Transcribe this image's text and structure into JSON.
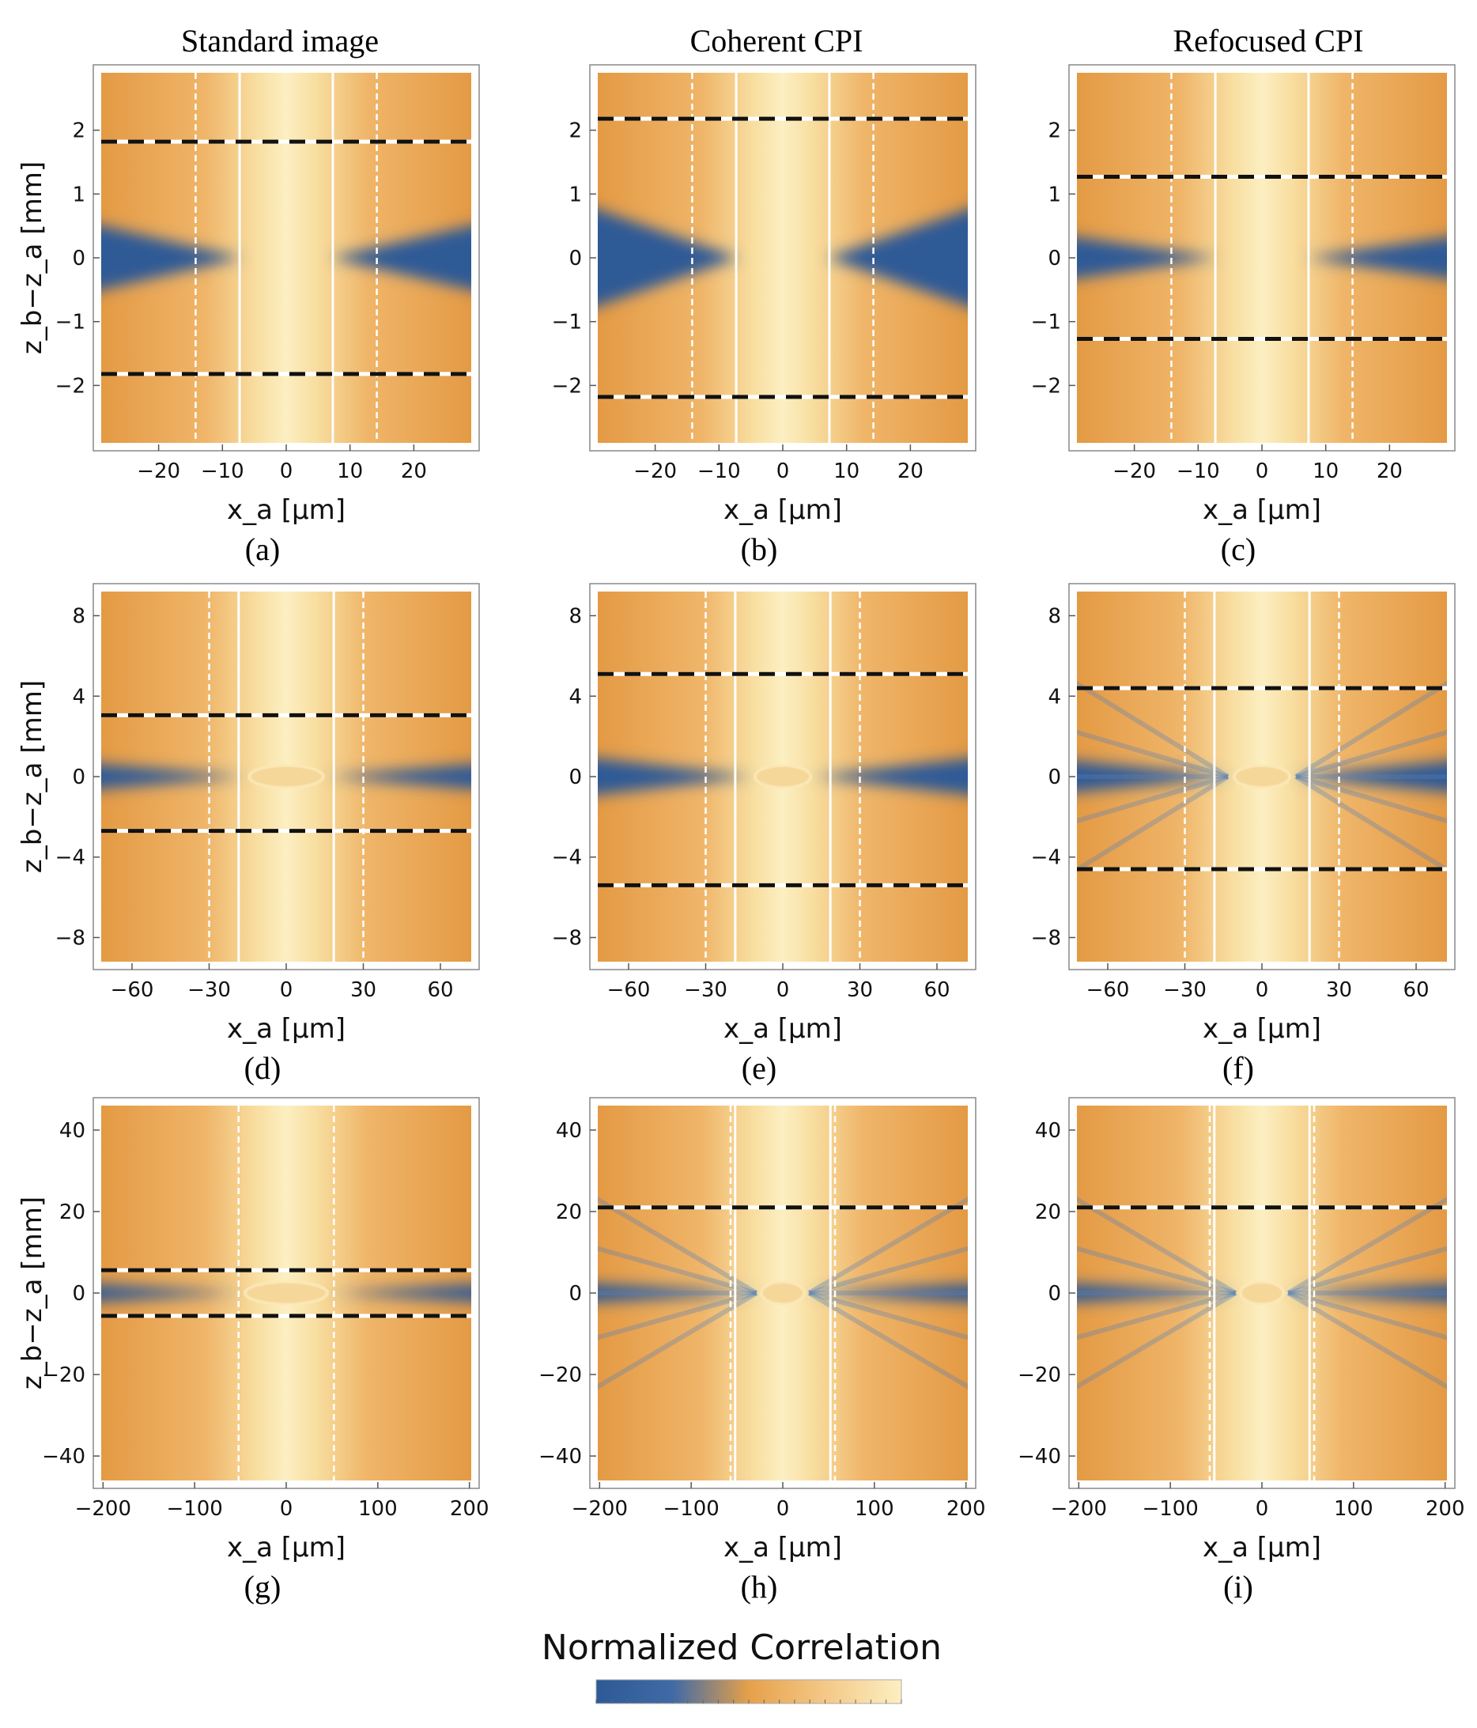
{
  "columns": [
    "Standard image",
    "Coherent CPI",
    "Refocused CPI"
  ],
  "colorbar": {
    "title": "Normalized Correlation",
    "stops": [
      "#2d5a96",
      "#3f6aa6",
      "#e6a04a",
      "#f4c887",
      "#fcefc2"
    ]
  },
  "colors": {
    "blue": "#2d5a96",
    "orange": "#e6a04a",
    "cream": "#fcefc2"
  },
  "chart_data": [
    {
      "type": "heatmap",
      "label": "(a)",
      "column": "Standard image",
      "xlabel": "x_a [μm]",
      "ylabel": "z_b−z_a [mm]",
      "xlim": [
        -29,
        29
      ],
      "ylim": [
        -2.9,
        2.9
      ],
      "xticks": [
        -20,
        -10,
        0,
        10,
        20
      ],
      "xticklabels": [
        "−20",
        "−10",
        "0",
        "10",
        "20"
      ],
      "yticks": [
        2,
        1,
        0,
        -1,
        -2
      ],
      "yticklabels": [
        "2",
        "1",
        "0",
        "−1",
        "−2"
      ],
      "solid_lines_x": [
        -7.3,
        7.3
      ],
      "dashed_white_x": [
        -14.2,
        14.2
      ],
      "dashed_bw_y": [
        1.82,
        -1.82
      ],
      "core_halfwidth": 7,
      "spread": 9,
      "rays": false,
      "central_blob": false
    },
    {
      "type": "heatmap",
      "label": "(b)",
      "column": "Coherent CPI",
      "xlabel": "x_a [μm]",
      "ylabel": "",
      "xlim": [
        -29,
        29
      ],
      "ylim": [
        -2.9,
        2.9
      ],
      "xticks": [
        -20,
        -10,
        0,
        10,
        20
      ],
      "xticklabels": [
        "−20",
        "−10",
        "0",
        "10",
        "20"
      ],
      "yticks": [
        2,
        1,
        0,
        -1,
        -2
      ],
      "yticklabels": [
        "2",
        "1",
        "0",
        "−1",
        "−2"
      ],
      "solid_lines_x": [
        -7.3,
        7.3
      ],
      "dashed_white_x": [
        -14.2,
        14.2
      ],
      "dashed_bw_y": [
        2.18,
        -2.18
      ],
      "core_halfwidth": 7,
      "spread": 6,
      "rays": false,
      "central_blob": false
    },
    {
      "type": "heatmap",
      "label": "(c)",
      "column": "Refocused CPI",
      "xlabel": "x_a [μm]",
      "ylabel": "",
      "xlim": [
        -29,
        29
      ],
      "ylim": [
        -2.9,
        2.9
      ],
      "xticks": [
        -20,
        -10,
        0,
        10,
        20
      ],
      "xticklabels": [
        "−20",
        "−10",
        "0",
        "10",
        "20"
      ],
      "yticks": [
        2,
        1,
        0,
        -1,
        -2
      ],
      "yticklabels": [
        "2",
        "1",
        "0",
        "−1",
        "−2"
      ],
      "solid_lines_x": [
        -7.3,
        7.3
      ],
      "dashed_white_x": [
        -14.2,
        14.2
      ],
      "dashed_bw_y": [
        1.27,
        -1.27
      ],
      "core_halfwidth": 7,
      "spread": 14,
      "rays": false,
      "central_blob": false
    },
    {
      "type": "heatmap",
      "label": "(d)",
      "column": "Standard image",
      "xlabel": "x_a [μm]",
      "ylabel": "z_b−z_a [mm]",
      "xlim": [
        -72,
        72
      ],
      "ylim": [
        -9.2,
        9.2
      ],
      "xticks": [
        -60,
        -30,
        0,
        30,
        60
      ],
      "xticklabels": [
        "−60",
        "−30",
        "0",
        "30",
        "60"
      ],
      "yticks": [
        8,
        4,
        0,
        -4,
        -8
      ],
      "yticklabels": [
        "8",
        "4",
        "0",
        "−4",
        "−8"
      ],
      "solid_lines_x": [
        -18.5,
        18.5
      ],
      "dashed_white_x": [
        -30,
        30
      ],
      "dashed_bw_y": [
        3.05,
        -2.7
      ],
      "core_halfwidth": 16,
      "spread": 7.5,
      "rays": false,
      "central_blob": true
    },
    {
      "type": "heatmap",
      "label": "(e)",
      "column": "Coherent CPI",
      "xlabel": "x_a [μm]",
      "ylabel": "",
      "xlim": [
        -72,
        72
      ],
      "ylim": [
        -9.2,
        9.2
      ],
      "xticks": [
        -60,
        -30,
        0,
        30,
        60
      ],
      "xticklabels": [
        "−60",
        "−30",
        "0",
        "30",
        "60"
      ],
      "yticks": [
        8,
        4,
        0,
        -4,
        -8
      ],
      "yticklabels": [
        "8",
        "4",
        "0",
        "−4",
        "−8"
      ],
      "solid_lines_x": [
        -18.5,
        18.5
      ],
      "dashed_white_x": [
        -30,
        30
      ],
      "dashed_bw_y": [
        5.1,
        -5.4
      ],
      "core_halfwidth": 12,
      "spread": 5.5,
      "rays": false,
      "central_blob": true
    },
    {
      "type": "heatmap",
      "label": "(f)",
      "column": "Refocused CPI",
      "xlabel": "x_a [μm]",
      "ylabel": "",
      "xlim": [
        -72,
        72
      ],
      "ylim": [
        -9.2,
        9.2
      ],
      "xticks": [
        -60,
        -30,
        0,
        30,
        60
      ],
      "xticklabels": [
        "−60",
        "−30",
        "0",
        "30",
        "60"
      ],
      "yticks": [
        8,
        4,
        0,
        -4,
        -8
      ],
      "yticklabels": [
        "8",
        "4",
        "0",
        "−4",
        "−8"
      ],
      "solid_lines_x": [
        -18.5,
        18.5
      ],
      "dashed_white_x": [
        -30,
        30
      ],
      "dashed_bw_y": [
        4.4,
        -4.6
      ],
      "core_halfwidth": 12,
      "spread": 6.5,
      "rays": true,
      "central_blob": true
    },
    {
      "type": "heatmap",
      "label": "(g)",
      "column": "Standard image",
      "xlabel": "x_a [μm]",
      "ylabel": "z_b−z_a [mm]",
      "xlim": [
        -202,
        202
      ],
      "ylim": [
        -46,
        46
      ],
      "xticks": [
        -200,
        -100,
        0,
        100,
        200
      ],
      "xticklabels": [
        "−200",
        "−100",
        "0",
        "100",
        "200"
      ],
      "yticks": [
        40,
        20,
        0,
        -20,
        -40
      ],
      "yticklabels": [
        "40",
        "20",
        "0",
        "−20",
        "−40"
      ],
      "solid_lines_x": [],
      "dashed_white_x": [
        -52,
        52
      ],
      "dashed_bw_y": [
        5.6,
        -5.6
      ],
      "core_halfwidth": 50,
      "spread": 4.5,
      "rays": false,
      "central_blob": true
    },
    {
      "type": "heatmap",
      "label": "(h)",
      "column": "Coherent CPI",
      "xlabel": "x_a [μm]",
      "ylabel": "",
      "xlim": [
        -202,
        202
      ],
      "ylim": [
        -46,
        46
      ],
      "xticks": [
        -200,
        -100,
        0,
        100,
        200
      ],
      "xticklabels": [
        "−200",
        "−100",
        "0",
        "100",
        "200"
      ],
      "yticks": [
        40,
        20,
        0,
        -20,
        -40
      ],
      "yticklabels": [
        "40",
        "20",
        "0",
        "−20",
        "−40"
      ],
      "solid_lines_x": [
        -52,
        52
      ],
      "dashed_white_x": [
        -57,
        57
      ],
      "dashed_bw_y": [
        21
      ],
      "core_halfwidth": 26,
      "spread": 2.4,
      "rays": true,
      "central_blob": true
    },
    {
      "type": "heatmap",
      "label": "(i)",
      "column": "Refocused CPI",
      "xlabel": "x_a [μm]",
      "ylabel": "",
      "xlim": [
        -202,
        202
      ],
      "ylim": [
        -46,
        46
      ],
      "xticks": [
        -200,
        -100,
        0,
        100,
        200
      ],
      "xticklabels": [
        "−200",
        "−100",
        "0",
        "100",
        "200"
      ],
      "yticks": [
        40,
        20,
        0,
        -20,
        -40
      ],
      "yticklabels": [
        "40",
        "20",
        "0",
        "−20",
        "−40"
      ],
      "solid_lines_x": [
        -52,
        52
      ],
      "dashed_white_x": [
        -57,
        57
      ],
      "dashed_bw_y": [
        21
      ],
      "core_halfwidth": 26,
      "spread": 2.4,
      "rays": true,
      "central_blob": true
    }
  ]
}
